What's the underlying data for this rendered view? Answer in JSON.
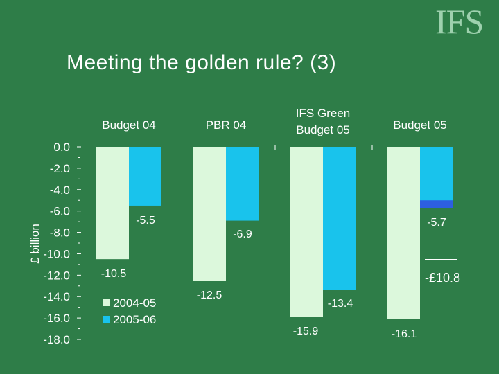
{
  "slide": {
    "title": "Meeting the golden rule? (3)",
    "logo_text": "IFS"
  },
  "colors": {
    "background": "#2e7d48",
    "series_2004_05": "#dcf8dc",
    "series_2005_06": "#19c3ec",
    "highlight_segment": "#2d5fe0",
    "text": "#ffffff"
  },
  "chart_data": {
    "type": "bar",
    "title": "",
    "ylabel": "£ billion",
    "ylim": [
      -18,
      0
    ],
    "yticks": [
      "0.0",
      "-2.0",
      "-4.0",
      "-6.0",
      "-8.0",
      "-10.0",
      "-12.0",
      "-14.0",
      "-16.0",
      "-18.0"
    ],
    "categories": [
      [
        "Budget 04"
      ],
      [
        "PBR 04"
      ],
      [
        "IFS Green",
        "Budget 05"
      ],
      [
        "Budget 05"
      ]
    ],
    "series": [
      {
        "name": "2004-05",
        "values": [
          -10.5,
          -12.5,
          -15.9,
          -16.1
        ],
        "labels": [
          "-10.5",
          "-12.5",
          "-15.9",
          "-16.1"
        ]
      },
      {
        "name": "2005-06",
        "values": [
          -5.5,
          -6.9,
          -13.4,
          -5.7
        ],
        "labels": [
          "-5.5",
          "-6.9",
          "-13.4",
          "-5.7"
        ]
      }
    ],
    "highlight": {
      "category_index": 3,
      "series_index": 1,
      "from": -5.0,
      "to": -5.7
    },
    "annotation": "-£10.8",
    "legend_position": "bottom-left"
  }
}
